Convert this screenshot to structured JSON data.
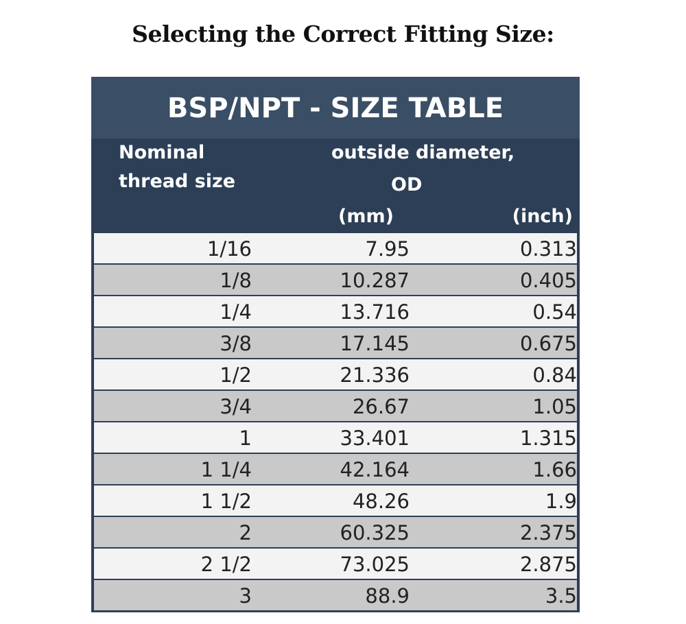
{
  "page_title": "Selecting the Correct Fitting Size:",
  "table": {
    "title": "BSP/NPT - SIZE TABLE",
    "headers": {
      "nominal_line1": "Nominal",
      "nominal_line2": "thread size",
      "od_line1": "outside diameter,",
      "od_line2": "OD",
      "mm": "(mm)",
      "inch": "(inch)"
    },
    "colors": {
      "title_band": "#3a4e65",
      "header_band": "#2d3f56",
      "row_light": "#f3f3f3",
      "row_dark": "#c9c9c9"
    },
    "rows": [
      {
        "size": "1/16",
        "mm": "7.95",
        "inch": "0.313"
      },
      {
        "size": "1/8",
        "mm": "10.287",
        "inch": "0.405"
      },
      {
        "size": "1/4",
        "mm": "13.716",
        "inch": "0.54"
      },
      {
        "size": "3/8",
        "mm": "17.145",
        "inch": "0.675"
      },
      {
        "size": "1/2",
        "mm": "21.336",
        "inch": "0.84"
      },
      {
        "size": "3/4",
        "mm": "26.67",
        "inch": "1.05"
      },
      {
        "size": "1",
        "mm": "33.401",
        "inch": "1.315"
      },
      {
        "size": "1 1/4",
        "mm": "42.164",
        "inch": "1.66"
      },
      {
        "size": "1 1/2",
        "mm": "48.26",
        "inch": "1.9"
      },
      {
        "size": "2",
        "mm": "60.325",
        "inch": "2.375"
      },
      {
        "size": "2 1/2",
        "mm": "73.025",
        "inch": "2.875"
      },
      {
        "size": "3",
        "mm": "88.9",
        "inch": "3.5"
      }
    ]
  }
}
